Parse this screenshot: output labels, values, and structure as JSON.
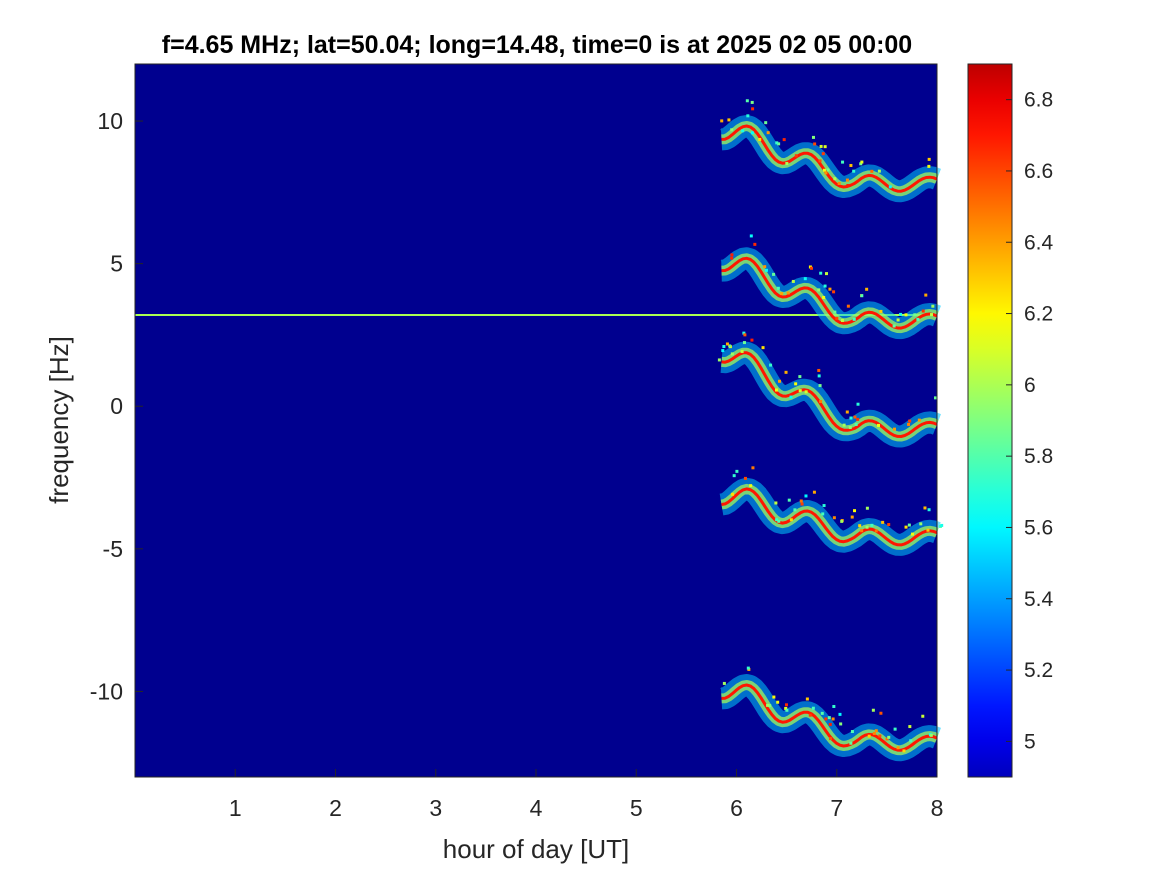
{
  "chart_data": {
    "type": "heatmap",
    "title": "f=4.65 MHz;  lat=50.04; long=14.48, time=0 is at 2025 02 05 00:00",
    "xlabel": "hour of day [UT]",
    "ylabel": "frequency [Hz]",
    "xlim": [
      0,
      8
    ],
    "ylim": [
      -13,
      12
    ],
    "x_ticks": [
      "1",
      "2",
      "3",
      "4",
      "5",
      "6",
      "7",
      "8"
    ],
    "y_ticks": [
      "10",
      "5",
      "0",
      "-5",
      "-10"
    ],
    "colorbar": {
      "colormap": "jet",
      "clim": [
        4.9,
        6.9
      ],
      "ticks": [
        "6.8",
        "6.6",
        "6.4",
        "6.2",
        "6",
        "5.8",
        "5.6",
        "5.4",
        "5.2",
        "5"
      ]
    },
    "background_value": 4.9,
    "features": [
      {
        "kind": "constant_line",
        "freq": 3.2,
        "x_range": [
          0,
          8
        ],
        "peak_value": 6.0
      },
      {
        "kind": "trace_group",
        "name": "upper",
        "freq_start": 9.8,
        "freq_end": 7.8
      },
      {
        "kind": "trace_group",
        "name": "middle-upper",
        "freq_start": 5.2,
        "freq_end": 3.0
      },
      {
        "kind": "trace_group",
        "name": "center",
        "freq_start": 2.0,
        "freq_end": -0.8
      },
      {
        "kind": "trace_group",
        "name": "middle-lower",
        "freq_start": -3.0,
        "freq_end": -4.6
      },
      {
        "kind": "trace_group",
        "name": "lower",
        "freq_start": -9.8,
        "freq_end": -11.8
      }
    ]
  }
}
